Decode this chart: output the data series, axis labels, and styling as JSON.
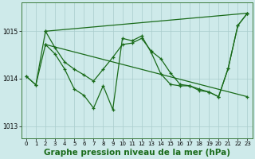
{
  "background_color": "#ceeaea",
  "grid_color": "#aacccc",
  "line_color": "#1a6b1a",
  "xlabel": "Graphe pression niveau de la mer (hPa)",
  "xlabel_fontsize": 7.5,
  "xlim": [
    -0.5,
    23.5
  ],
  "ylim": [
    1012.75,
    1015.6
  ],
  "yticks": [
    1013,
    1014,
    1015
  ],
  "xticks": [
    0,
    1,
    2,
    3,
    4,
    5,
    6,
    7,
    8,
    9,
    10,
    11,
    12,
    13,
    14,
    15,
    16,
    17,
    18,
    19,
    20,
    21,
    22,
    23
  ],
  "line1_x": [
    0,
    1,
    2,
    3,
    4,
    5,
    6,
    7,
    8,
    9,
    10,
    11,
    12,
    13,
    14,
    15,
    16,
    17,
    18,
    19,
    20,
    21,
    22,
    23
  ],
  "line1_y": [
    1014.05,
    1013.87,
    1015.0,
    1014.65,
    1014.35,
    1014.2,
    1014.08,
    1013.95,
    1014.2,
    1014.45,
    1014.72,
    1014.75,
    1014.85,
    1014.58,
    1014.42,
    1014.12,
    1013.88,
    1013.85,
    1013.78,
    1013.72,
    1013.62,
    1014.22,
    1015.12,
    1015.38
  ],
  "line2_x": [
    0,
    1,
    2,
    3,
    4,
    5,
    6,
    7,
    8,
    9,
    10,
    11,
    12,
    13,
    14,
    15,
    16,
    17,
    18,
    19,
    20,
    21,
    22,
    23
  ],
  "line2_y": [
    1014.05,
    1013.87,
    1014.72,
    1014.52,
    1014.2,
    1013.78,
    1013.65,
    1013.38,
    1013.85,
    1013.35,
    1014.85,
    1014.8,
    1014.9,
    1014.55,
    1014.1,
    1013.88,
    1013.85,
    1013.85,
    1013.75,
    1013.72,
    1013.62,
    1014.22,
    1015.12,
    1015.38
  ],
  "line3_x": [
    2,
    23
  ],
  "line3_y": [
    1015.0,
    1015.38
  ],
  "line4_x": [
    2,
    23
  ],
  "line4_y": [
    1014.72,
    1013.62
  ]
}
